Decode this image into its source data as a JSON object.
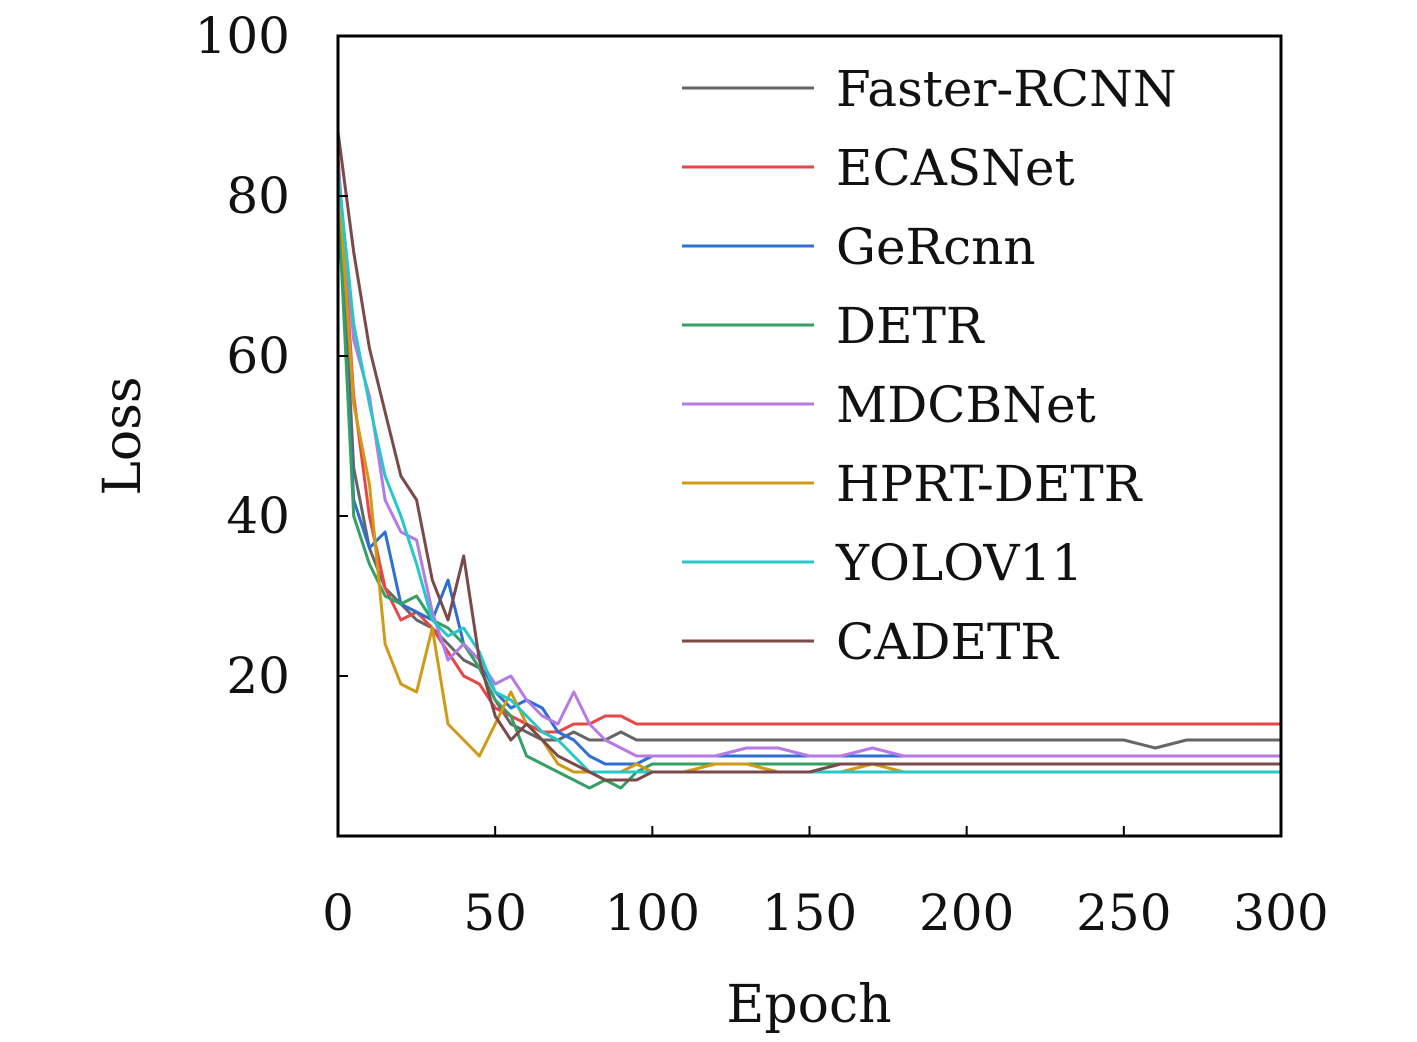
{
  "chart_data": {
    "type": "line",
    "xlabel": "Epoch",
    "ylabel": "Loss",
    "xlim": [
      0,
      300
    ],
    "ylim": [
      0,
      100
    ],
    "x_ticks": [
      0,
      50,
      100,
      150,
      200,
      250,
      300
    ],
    "y_ticks": [
      20,
      40,
      60,
      80,
      100
    ],
    "grid": false,
    "legend_position": "top-right",
    "series": [
      {
        "name": "Faster-RCNN",
        "color": "#666666",
        "x": [
          0,
          5,
          10,
          15,
          20,
          25,
          30,
          35,
          40,
          45,
          50,
          55,
          60,
          65,
          70,
          75,
          80,
          85,
          90,
          95,
          100,
          110,
          120,
          130,
          140,
          150,
          160,
          170,
          180,
          190,
          200,
          210,
          220,
          230,
          240,
          250,
          260,
          270,
          280,
          290,
          300
        ],
        "y": [
          85,
          46,
          36,
          31,
          29,
          27,
          26,
          24,
          22,
          21,
          17,
          14,
          13,
          12,
          12,
          13,
          12,
          12,
          13,
          12,
          12,
          12,
          12,
          12,
          12,
          12,
          12,
          12,
          12,
          12,
          12,
          12,
          12,
          12,
          12,
          12,
          11,
          12,
          12,
          12,
          12
        ]
      },
      {
        "name": "ECASNet",
        "color": "#e8474a",
        "x": [
          0,
          5,
          10,
          15,
          20,
          25,
          30,
          35,
          40,
          45,
          50,
          55,
          60,
          65,
          70,
          75,
          80,
          85,
          90,
          95,
          100,
          110,
          120,
          130,
          140,
          150,
          160,
          170,
          180,
          190,
          200,
          210,
          220,
          230,
          240,
          250,
          260,
          270,
          280,
          290,
          300
        ],
        "y": [
          85,
          55,
          40,
          31,
          27,
          28,
          26,
          23,
          20,
          19,
          16,
          15,
          14,
          13,
          13,
          14,
          14,
          15,
          15,
          14,
          14,
          14,
          14,
          14,
          14,
          14,
          14,
          14,
          14,
          14,
          14,
          14,
          14,
          14,
          14,
          14,
          14,
          14,
          14,
          14,
          14
        ]
      },
      {
        "name": "GeRcnn",
        "color": "#2e6fd6",
        "x": [
          0,
          5,
          10,
          15,
          20,
          25,
          30,
          35,
          40,
          45,
          50,
          55,
          60,
          65,
          70,
          75,
          80,
          85,
          90,
          95,
          100,
          110,
          120,
          130,
          140,
          150,
          160,
          170,
          180,
          190,
          200,
          210,
          220,
          230,
          240,
          250,
          260,
          270,
          280,
          290,
          300
        ],
        "y": [
          80,
          42,
          36,
          38,
          29,
          28,
          27,
          32,
          24,
          22,
          18,
          16,
          17,
          16,
          13,
          12,
          10,
          9,
          9,
          9,
          10,
          10,
          10,
          10,
          10,
          10,
          10,
          10,
          10,
          10,
          10,
          10,
          10,
          10,
          10,
          10,
          10,
          10,
          10,
          10,
          10
        ]
      },
      {
        "name": "DETR",
        "color": "#34a063",
        "x": [
          0,
          5,
          10,
          15,
          20,
          25,
          30,
          35,
          40,
          45,
          50,
          55,
          60,
          65,
          70,
          75,
          80,
          85,
          90,
          95,
          100,
          110,
          120,
          130,
          140,
          150,
          160,
          170,
          180,
          190,
          200,
          210,
          220,
          230,
          240,
          250,
          260,
          270,
          280,
          290,
          300
        ],
        "y": [
          80,
          40,
          34,
          30,
          29,
          30,
          27,
          26,
          24,
          21,
          17,
          15,
          10,
          9,
          8,
          7,
          6,
          7,
          6,
          8,
          9,
          9,
          9,
          9,
          9,
          9,
          9,
          9,
          9,
          9,
          9,
          9,
          9,
          9,
          9,
          9,
          9,
          9,
          9,
          9,
          9
        ]
      },
      {
        "name": "MDCBNet",
        "color": "#b57ae6",
        "x": [
          0,
          5,
          10,
          15,
          20,
          25,
          30,
          35,
          40,
          45,
          50,
          55,
          60,
          65,
          70,
          75,
          80,
          85,
          90,
          95,
          100,
          110,
          120,
          130,
          140,
          150,
          160,
          170,
          180,
          190,
          200,
          210,
          220,
          230,
          240,
          250,
          260,
          270,
          280,
          290,
          300
        ],
        "y": [
          84,
          62,
          55,
          42,
          38,
          37,
          28,
          22,
          24,
          22,
          19,
          20,
          17,
          15,
          14,
          18,
          14,
          12,
          11,
          10,
          10,
          10,
          10,
          11,
          11,
          10,
          10,
          11,
          10,
          10,
          10,
          10,
          10,
          10,
          10,
          10,
          10,
          10,
          10,
          10,
          10
        ]
      },
      {
        "name": "HPRT-DETR",
        "color": "#d19a16",
        "x": [
          0,
          5,
          10,
          15,
          20,
          25,
          30,
          35,
          40,
          45,
          50,
          55,
          60,
          65,
          70,
          75,
          80,
          85,
          90,
          95,
          100,
          110,
          120,
          130,
          140,
          150,
          160,
          170,
          180,
          190,
          200,
          210,
          220,
          230,
          240,
          250,
          260,
          270,
          280,
          290,
          300
        ],
        "y": [
          83,
          54,
          44,
          24,
          19,
          18,
          26,
          14,
          12,
          10,
          14,
          18,
          14,
          12,
          9,
          8,
          8,
          8,
          8,
          9,
          8,
          8,
          9,
          9,
          8,
          8,
          8,
          9,
          8,
          8,
          8,
          8,
          8,
          8,
          8,
          8,
          8,
          8,
          8,
          8,
          8
        ]
      },
      {
        "name": "YOLOV11",
        "color": "#27c6c9",
        "x": [
          0,
          5,
          10,
          15,
          20,
          25,
          30,
          35,
          40,
          45,
          50,
          55,
          60,
          65,
          70,
          75,
          80,
          85,
          90,
          95,
          100,
          110,
          120,
          130,
          140,
          150,
          160,
          170,
          180,
          190,
          200,
          210,
          220,
          230,
          240,
          250,
          260,
          270,
          280,
          290,
          300
        ],
        "y": [
          83,
          64,
          54,
          45,
          40,
          34,
          27,
          25,
          26,
          23,
          18,
          17,
          15,
          13,
          12,
          10,
          8,
          8,
          8,
          8,
          8,
          8,
          8,
          8,
          8,
          8,
          8,
          8,
          8,
          8,
          8,
          8,
          8,
          8,
          8,
          8,
          8,
          8,
          8,
          8,
          8
        ]
      },
      {
        "name": "CADETR",
        "color": "#7a4a4a",
        "x": [
          0,
          5,
          10,
          15,
          20,
          25,
          30,
          35,
          40,
          45,
          50,
          55,
          60,
          65,
          70,
          75,
          80,
          85,
          90,
          95,
          100,
          110,
          120,
          130,
          140,
          150,
          160,
          170,
          180,
          190,
          200,
          210,
          220,
          230,
          240,
          250,
          260,
          270,
          280,
          290,
          300
        ],
        "y": [
          88,
          73,
          61,
          53,
          45,
          42,
          32,
          27,
          35,
          22,
          15,
          12,
          14,
          12,
          10,
          9,
          8,
          7,
          7,
          7,
          8,
          8,
          8,
          8,
          8,
          8,
          9,
          9,
          9,
          9,
          9,
          9,
          9,
          9,
          9,
          9,
          9,
          9,
          9,
          9,
          9
        ]
      }
    ]
  }
}
